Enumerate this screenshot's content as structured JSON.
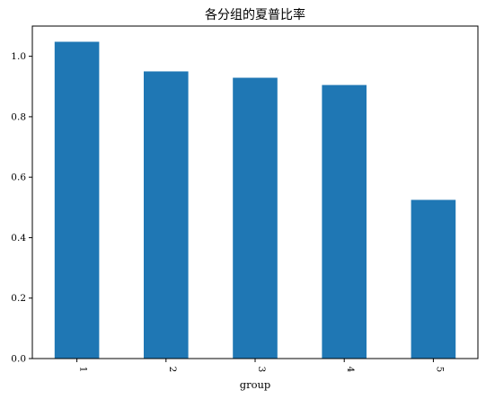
{
  "chart_data": {
    "type": "bar",
    "title": "各分组的夏普比率",
    "xlabel": "group",
    "ylabel": "",
    "categories": [
      "1",
      "2",
      "3",
      "4",
      "5"
    ],
    "values": [
      1.048,
      0.95,
      0.929,
      0.905,
      0.525
    ],
    "ylim": [
      0,
      1.1
    ],
    "yticks": [
      0.0,
      0.2,
      0.4,
      0.6,
      0.8,
      1.0
    ],
    "ytick_labels": [
      "0.0",
      "0.2",
      "0.4",
      "0.6",
      "0.8",
      "1.0"
    ],
    "bar_color": "#1f77b4",
    "grid": false,
    "legend": "none"
  }
}
